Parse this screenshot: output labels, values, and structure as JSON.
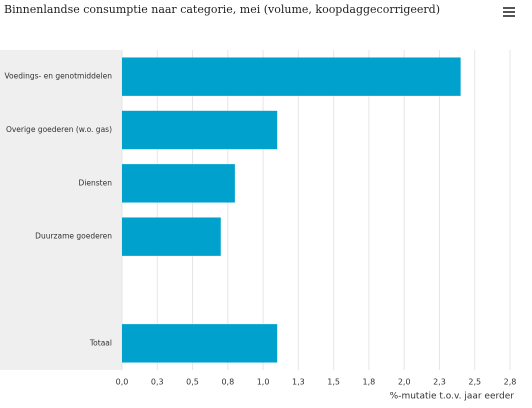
{
  "chart_data": {
    "type": "hbar",
    "title": "Binnenlandse consumptie naar categorie, mei (volume, koopdaggecorrigeerd)",
    "categories": [
      "Voedings- en genotmiddelen",
      "Overige goederen (w.o. gas)",
      "Diensten",
      "Duurzame goederen",
      null,
      "Totaal"
    ],
    "values": [
      2.4,
      1.1,
      0.8,
      0.7,
      null,
      1.1
    ],
    "color": "#00a1cd",
    "x_label": "%-mutatie t.o.v. jaar eerder",
    "xlim": [
      0,
      2.75
    ],
    "xticks": [
      {
        "value": 0,
        "label": "0,0"
      },
      {
        "value": 0.25,
        "label": "0,3"
      },
      {
        "value": 0.5,
        "label": "0,5"
      },
      {
        "value": 0.75,
        "label": "0,8"
      },
      {
        "value": 1,
        "label": "1,0"
      },
      {
        "value": 1.25,
        "label": "1,3"
      },
      {
        "value": 1.5,
        "label": "1,5"
      },
      {
        "value": 1.75,
        "label": "1,8"
      },
      {
        "value": 2,
        "label": "2,0"
      },
      {
        "value": 2.25,
        "label": "2,3"
      },
      {
        "value": 2.5,
        "label": "2,5"
      },
      {
        "value": 2.75,
        "label": "2,8"
      }
    ],
    "grid": true
  }
}
